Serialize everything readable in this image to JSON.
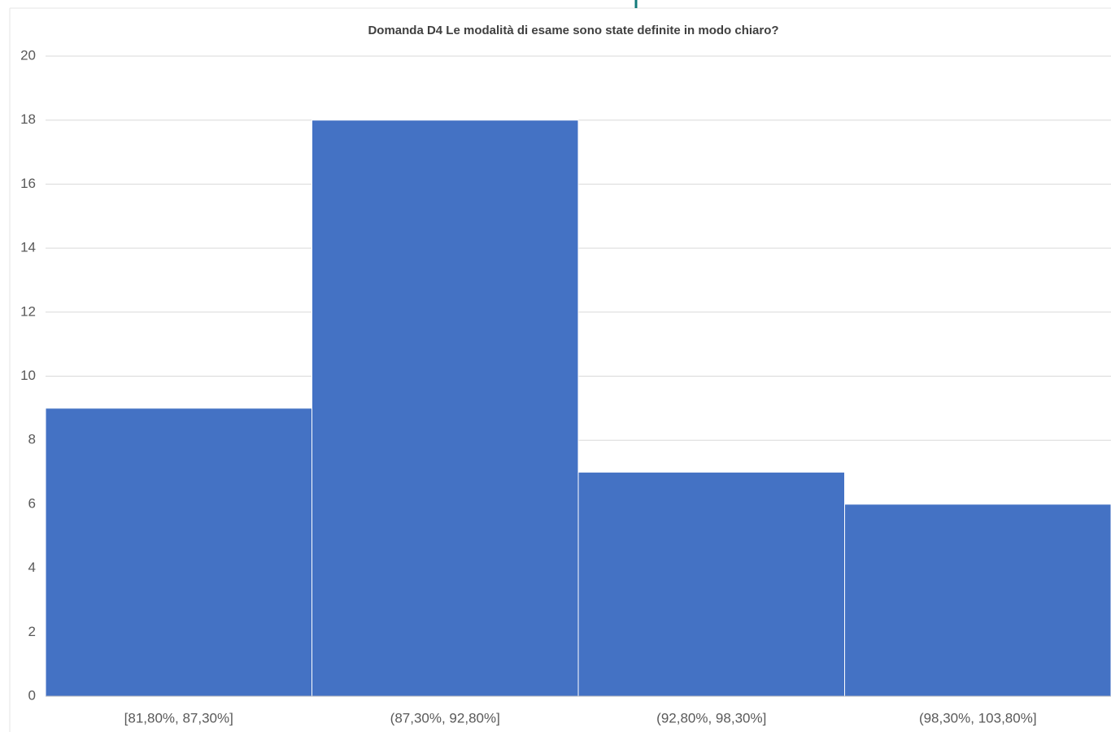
{
  "chart_data": {
    "type": "bar",
    "title": "Domanda D4 Le modalità di esame sono state definite in modo chiaro?",
    "categories": [
      "[81,80%, 87,30%]",
      "(87,30%, 92,80%]",
      "(92,80%, 98,30%]",
      "(98,30%, 103,80%]"
    ],
    "values": [
      9,
      18,
      7,
      6
    ],
    "color": "#4472c4",
    "ylim": [
      0,
      20
    ],
    "yticks": [
      0,
      2,
      4,
      6,
      8,
      10,
      12,
      14,
      16,
      18,
      20
    ],
    "grid": true
  }
}
